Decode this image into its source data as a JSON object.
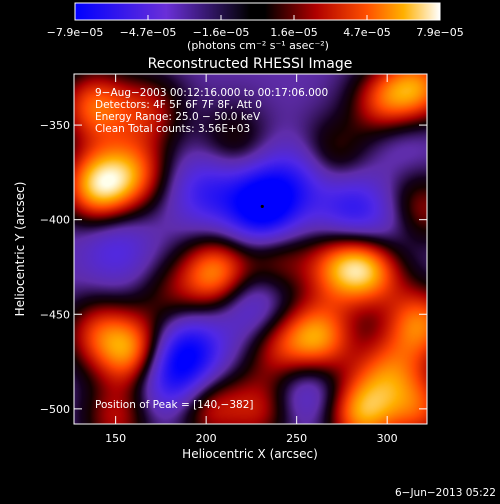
{
  "chart_data": {
    "type": "heatmap",
    "title": "Reconstructed RHESSI Image",
    "xlabel": "Heliocentric X (arcsec)",
    "ylabel": "Heliocentric Y (arcsec)",
    "xlim": [
      127,
      322
    ],
    "ylim": [
      -508,
      -323
    ],
    "xticks": [
      150,
      200,
      250,
      300
    ],
    "xtick_labels": [
      "150",
      "200",
      "250",
      "300"
    ],
    "yticks": [
      -350,
      -400,
      -450,
      -500
    ],
    "ytick_labels": [
      "−350",
      "−400",
      "−450",
      "−500"
    ],
    "colorbar": {
      "range": [
        -7.9e-05,
        7.9e-05
      ],
      "tick_labels": [
        "−7.9e−05",
        "−4.7e−05",
        "−1.6e−05",
        "1.6e−05",
        "4.7e−05",
        "7.9e−05"
      ],
      "unit_label": "(photons cm⁻² s⁻¹ asec⁻²)"
    },
    "info_lines": [
      "9−Aug−2003 00:12:16.000 to 00:17:06.000",
      "Detectors: 4F 5F 6F 7F 8F, Att 0",
      "Energy Range: 25.0 − 50.0 keV",
      "Clean    Total counts: 3.56E+03"
    ],
    "peak_label": "Position of Peak = [140,−382]",
    "grid": false,
    "blobs": [
      {
        "x": 138,
        "y": -340,
        "v": 6e-05
      },
      {
        "x": 168,
        "y": -342,
        "v": 4e-05
      },
      {
        "x": 300,
        "y": -340,
        "v": 7.5e-05
      },
      {
        "x": 318,
        "y": -330,
        "v": 6e-05
      },
      {
        "x": 140,
        "y": -382,
        "v": 7.9e-05
      },
      {
        "x": 160,
        "y": -375,
        "v": 5e-05
      },
      {
        "x": 290,
        "y": -425,
        "v": 7.2e-05
      },
      {
        "x": 272,
        "y": -425,
        "v": 5e-05
      },
      {
        "x": 205,
        "y": -428,
        "v": 6.8e-05
      },
      {
        "x": 238,
        "y": -420,
        "v": 3.5e-05
      },
      {
        "x": 160,
        "y": -470,
        "v": 6.5e-05
      },
      {
        "x": 140,
        "y": -460,
        "v": 4.5e-05
      },
      {
        "x": 262,
        "y": -462,
        "v": 6.8e-05
      },
      {
        "x": 240,
        "y": -468,
        "v": 4e-05
      },
      {
        "x": 318,
        "y": -455,
        "v": 6.5e-05
      },
      {
        "x": 300,
        "y": -480,
        "v": 4.8e-05
      },
      {
        "x": 285,
        "y": -502,
        "v": 7e-05
      },
      {
        "x": 318,
        "y": -500,
        "v": 5e-05
      },
      {
        "x": 200,
        "y": -498,
        "v": 4.5e-05
      },
      {
        "x": 230,
        "y": -500,
        "v": 4e-05
      },
      {
        "x": 150,
        "y": -505,
        "v": 4e-05
      },
      {
        "x": 270,
        "y": -365,
        "v": 3e-05
      },
      {
        "x": 215,
        "y": -358,
        "v": 2.5e-05
      },
      {
        "x": 318,
        "y": -395,
        "v": 4e-05
      },
      {
        "x": 180,
        "y": -440,
        "v": 2.5e-05
      },
      {
        "x": 231,
        "y": -393,
        "v": -7.9e-05
      },
      {
        "x": 200,
        "y": -385,
        "v": -3.5e-05
      },
      {
        "x": 250,
        "y": -378,
        "v": -3e-05
      },
      {
        "x": 190,
        "y": -470,
        "v": -5.5e-05
      },
      {
        "x": 180,
        "y": -485,
        "v": -4.5e-05
      },
      {
        "x": 305,
        "y": -348,
        "v": -4e-05
      },
      {
        "x": 280,
        "y": -395,
        "v": -4e-05
      },
      {
        "x": 225,
        "y": -445,
        "v": -3e-05
      },
      {
        "x": 300,
        "y": -408,
        "v": -2.5e-05
      },
      {
        "x": 150,
        "y": -415,
        "v": -2.5e-05
      },
      {
        "x": 255,
        "y": -490,
        "v": -3e-05
      }
    ]
  },
  "footer": {
    "date": "6−Jun−2013 05:22"
  }
}
